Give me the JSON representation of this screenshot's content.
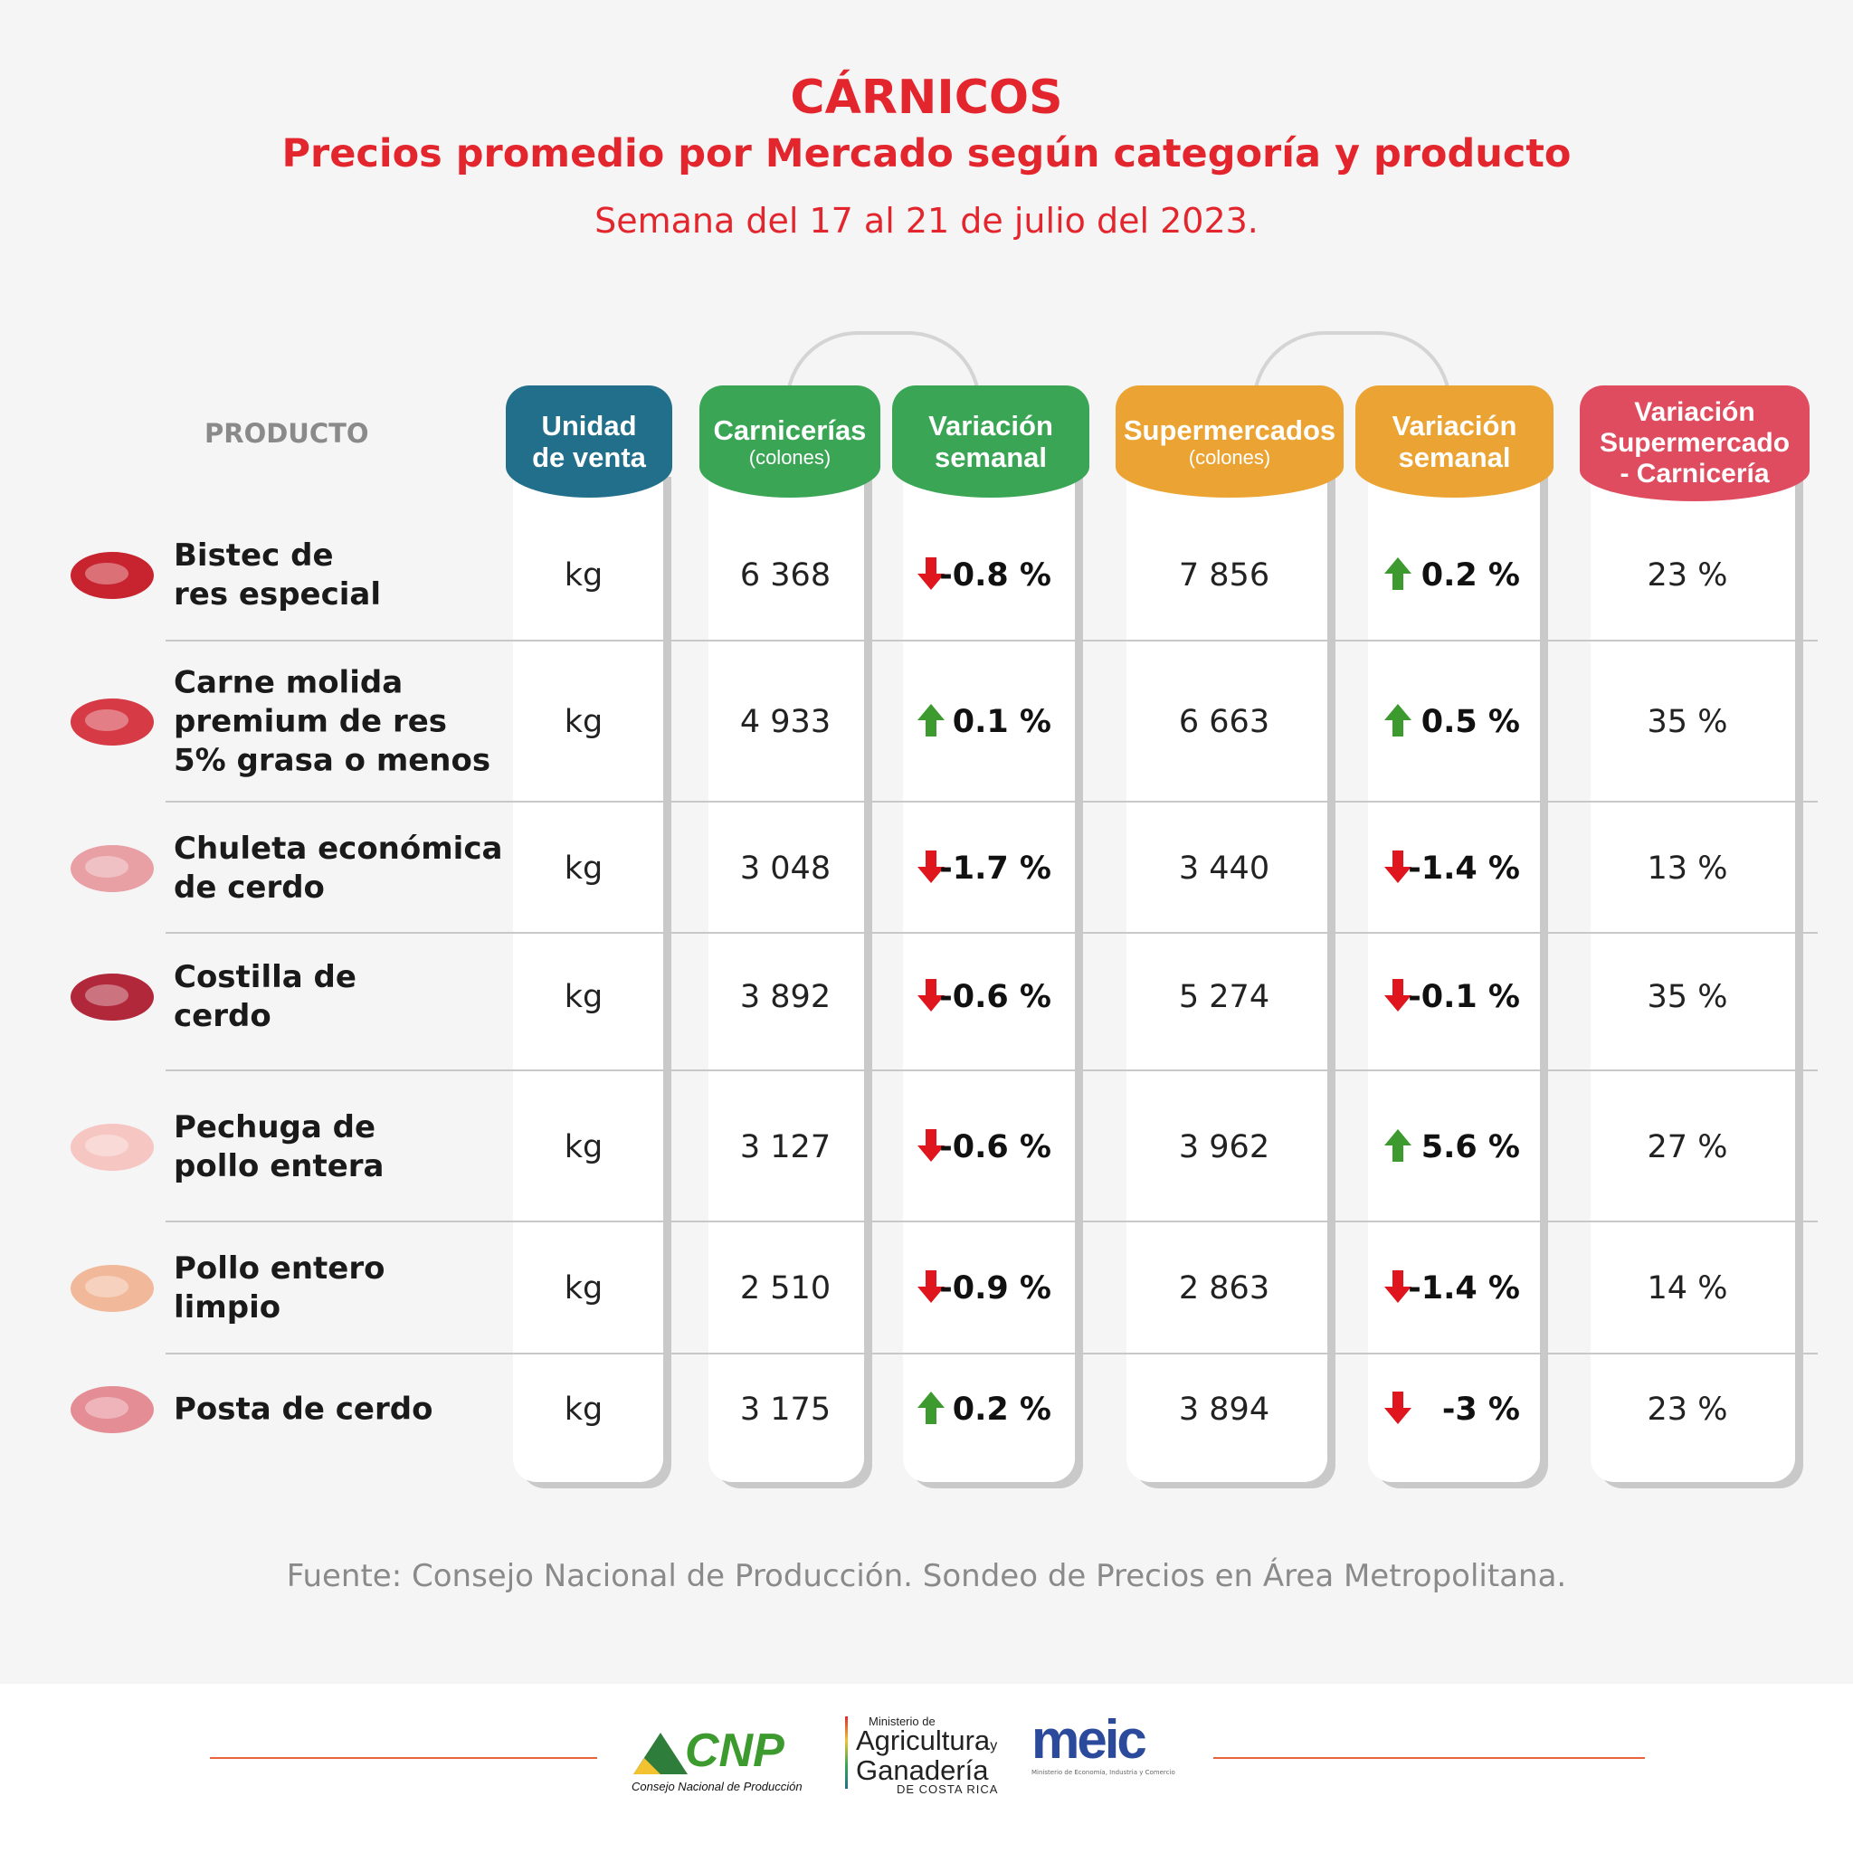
{
  "header": {
    "title": "CÁRNICOS",
    "subtitle": "Precios promedio por Mercado según categoría y producto",
    "week": "Semana del 17 al 21 de julio del 2023."
  },
  "columns": {
    "product": "PRODUCTO",
    "unit": [
      "Unidad",
      "de venta"
    ],
    "butcher": "Carnicerías",
    "butcher_unit": "(colones)",
    "butcher_var": [
      "Variación",
      "semanal"
    ],
    "super": "Supermercados",
    "super_unit": "(colones)",
    "super_var": [
      "Variación",
      "semanal"
    ],
    "diff": [
      "Variación",
      "Supermercado",
      "- Carnicería"
    ]
  },
  "colors": {
    "unit": "#216f8a",
    "butcher": "#3aa655",
    "super": "#eba433",
    "diff": "#e04c5f",
    "title": "#e3262d",
    "up": "#3c9a2e",
    "down": "#e0161e"
  },
  "rows": [
    {
      "product": [
        "Bistec de",
        "res especial"
      ],
      "icon": "steak-icon",
      "unit": "kg",
      "butcher": "6 368",
      "butcher_var": "-0.8 %",
      "butcher_dir": "down",
      "super": "7 856",
      "super_var": "0.2 %",
      "super_dir": "up",
      "diff": "23 %"
    },
    {
      "product": [
        "Carne molida",
        "premium de res",
        "5% grasa o menos"
      ],
      "icon": "ground-beef-icon",
      "unit": "kg",
      "butcher": "4 933",
      "butcher_var": "0.1 %",
      "butcher_dir": "up",
      "super": "6 663",
      "super_var": "0.5 %",
      "super_dir": "up",
      "diff": "35 %"
    },
    {
      "product": [
        "Chuleta económica",
        "de cerdo"
      ],
      "icon": "pork-chop-icon",
      "unit": "kg",
      "butcher": "3 048",
      "butcher_var": "-1.7 %",
      "butcher_dir": "down",
      "super": "3 440",
      "super_var": "-1.4 %",
      "super_dir": "down",
      "diff": "13 %"
    },
    {
      "product": [
        "Costilla de",
        "cerdo"
      ],
      "icon": "ribs-icon",
      "unit": "kg",
      "butcher": "3 892",
      "butcher_var": "-0.6 %",
      "butcher_dir": "down",
      "super": "5 274",
      "super_var": "-0.1 %",
      "super_dir": "down",
      "diff": "35 %"
    },
    {
      "product": [
        "Pechuga de",
        "pollo entera"
      ],
      "icon": "chicken-breast-icon",
      "unit": "kg",
      "butcher": "3 127",
      "butcher_var": "-0.6 %",
      "butcher_dir": "down",
      "super": "3 962",
      "super_var": "5.6 %",
      "super_dir": "up",
      "diff": "27 %"
    },
    {
      "product": [
        "Pollo entero",
        "limpio"
      ],
      "icon": "whole-chicken-icon",
      "unit": "kg",
      "butcher": "2 510",
      "butcher_var": "-0.9 %",
      "butcher_dir": "down",
      "super": "2 863",
      "super_var": "-1.4 %",
      "super_dir": "down",
      "diff": "14 %"
    },
    {
      "product": [
        "Posta de cerdo"
      ],
      "icon": "pork-cut-icon",
      "unit": "kg",
      "butcher": "3 175",
      "butcher_var": "0.2 %",
      "butcher_dir": "up",
      "super": "3 894",
      "super_var": "-3 %",
      "super_dir": "down",
      "diff": "23 %"
    }
  ],
  "source": "Fuente: Consejo Nacional de Producción. Sondeo de Precios en Área Metropolitana.",
  "footer": {
    "cnp_logo": "CNP",
    "cnp_caption": "Consejo Nacional de Producción",
    "mag_small": "Ministerio de",
    "mag_line1": "Agricultura",
    "mag_y": "y",
    "mag_line2": "Ganadería",
    "mag_country": "DE COSTA RICA",
    "meic_logo": "meic",
    "meic_caption": "Ministerio de Economía, Industria y Comercio"
  }
}
